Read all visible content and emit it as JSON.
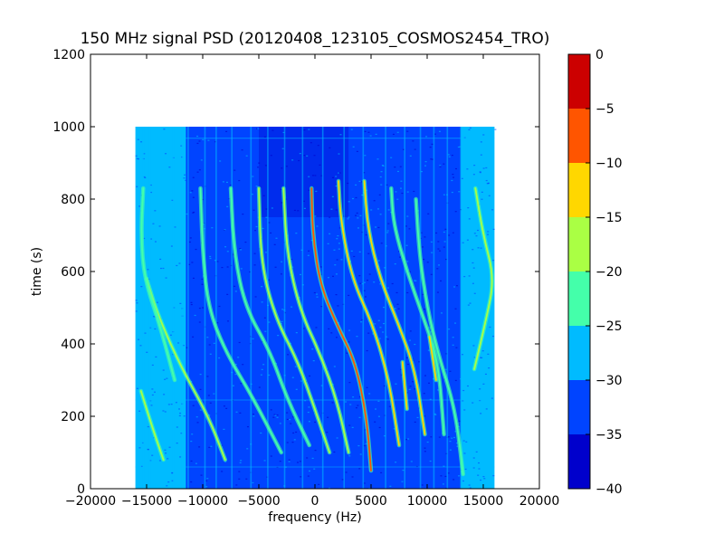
{
  "chart_data": {
    "type": "heatmap",
    "title": "150 MHz signal PSD (20120408_123105_COSMOS2454_TRO)",
    "xlabel": "frequency (Hz)",
    "ylabel": "time (s)",
    "xlim": [
      -20000,
      20000
    ],
    "ylim": [
      0,
      1200
    ],
    "data_extent": {
      "x": [
        -16000,
        16000
      ],
      "y": [
        0,
        1000
      ]
    },
    "x_ticks": [
      -20000,
      -15000,
      -10000,
      -5000,
      0,
      5000,
      10000,
      15000,
      20000
    ],
    "y_ticks": [
      0,
      200,
      400,
      600,
      800,
      1000,
      1200
    ],
    "grid": false,
    "colorbar": {
      "range": [
        -40,
        0
      ],
      "ticks": [
        0,
        -5,
        -10,
        -15,
        -20,
        -25,
        -30,
        -35,
        -40
      ],
      "levels": [
        {
          "from": -40,
          "to": -35,
          "color": "#0000cc"
        },
        {
          "from": -35,
          "to": -30,
          "color": "#0044ff"
        },
        {
          "from": -30,
          "to": -25,
          "color": "#00bbff"
        },
        {
          "from": -25,
          "to": -20,
          "color": "#44ffaa"
        },
        {
          "from": -20,
          "to": -15,
          "color": "#aaff44"
        },
        {
          "from": -15,
          "to": -10,
          "color": "#ffd700"
        },
        {
          "from": -10,
          "to": -5,
          "color": "#ff5500"
        },
        {
          "from": -5,
          "to": 0,
          "color": "#cc0000"
        }
      ]
    },
    "background_level_color": "#00bbff",
    "noise_floor_color": "#0044ff",
    "traces": [
      {
        "name": "",
        "points": [
          [
            5000,
            50
          ],
          [
            4600,
            200
          ],
          [
            3600,
            350
          ],
          [
            2000,
            450
          ],
          [
            500,
            560
          ],
          [
            -200,
            700
          ],
          [
            -300,
            830
          ]
        ],
        "color": "#ff5500"
      },
      {
        "name": "",
        "points": [
          [
            7500,
            120
          ],
          [
            6600,
            300
          ],
          [
            5200,
            450
          ],
          [
            3300,
            580
          ],
          [
            2300,
            740
          ],
          [
            2100,
            850
          ]
        ],
        "color": "#ffd700"
      },
      {
        "name": "",
        "points": [
          [
            9800,
            150
          ],
          [
            8900,
            330
          ],
          [
            7500,
            450
          ],
          [
            5800,
            580
          ],
          [
            4700,
            720
          ],
          [
            4400,
            850
          ]
        ],
        "color": "#ffd700"
      },
      {
        "name": "",
        "points": [
          [
            3000,
            100
          ],
          [
            2000,
            240
          ],
          [
            500,
            370
          ],
          [
            -1300,
            490
          ],
          [
            -2500,
            650
          ],
          [
            -2800,
            830
          ]
        ],
        "color": "#aaff44"
      },
      {
        "name": "",
        "points": [
          [
            1300,
            100
          ],
          [
            0,
            220
          ],
          [
            -1500,
            350
          ],
          [
            -3500,
            470
          ],
          [
            -4800,
            620
          ],
          [
            -5000,
            830
          ]
        ],
        "color": "#aaff44"
      },
      {
        "name": "",
        "points": [
          [
            -500,
            120
          ],
          [
            -2500,
            250
          ],
          [
            -4000,
            380
          ],
          [
            -6200,
            500
          ],
          [
            -7200,
            650
          ],
          [
            -7500,
            830
          ]
        ],
        "color": "#44ffaa"
      },
      {
        "name": "",
        "points": [
          [
            11500,
            150
          ],
          [
            11000,
            350
          ],
          [
            9700,
            470
          ],
          [
            8200,
            600
          ],
          [
            7000,
            730
          ],
          [
            6800,
            830
          ]
        ],
        "color": "#44ffaa"
      },
      {
        "name": "",
        "points": [
          [
            13200,
            40
          ],
          [
            12500,
            220
          ],
          [
            11000,
            370
          ],
          [
            10000,
            500
          ],
          [
            9300,
            650
          ],
          [
            9000,
            800
          ]
        ],
        "color": "#44ffaa"
      },
      {
        "name": "",
        "points": [
          [
            -8000,
            80
          ],
          [
            -9500,
            200
          ],
          [
            -12000,
            340
          ],
          [
            -14000,
            480
          ],
          [
            -15000,
            580
          ]
        ],
        "color": "#aaff44"
      },
      {
        "name": "",
        "points": [
          [
            -13500,
            80
          ],
          [
            -14500,
            170
          ],
          [
            -15500,
            270
          ]
        ],
        "color": "#aaff44"
      },
      {
        "name": "",
        "points": [
          [
            -12500,
            300
          ],
          [
            -13800,
            450
          ],
          [
            -15200,
            580
          ],
          [
            -15500,
            700
          ],
          [
            -15300,
            830
          ]
        ],
        "color": "#44ffaa"
      },
      {
        "name": "",
        "points": [
          [
            14200,
            330
          ],
          [
            15200,
            460
          ],
          [
            16000,
            580
          ],
          [
            15000,
            700
          ],
          [
            14300,
            830
          ]
        ],
        "color": "#aaff44"
      },
      {
        "name": "",
        "points": [
          [
            -3000,
            100
          ],
          [
            -5500,
            250
          ],
          [
            -8000,
            380
          ],
          [
            -9500,
            500
          ],
          [
            -10000,
            650
          ],
          [
            -10200,
            830
          ]
        ],
        "color": "#44ffaa"
      },
      {
        "name": "",
        "points": [
          [
            10800,
            300
          ],
          [
            10200,
            420
          ]
        ],
        "color": "#ffd700"
      },
      {
        "name": "",
        "points": [
          [
            8200,
            220
          ],
          [
            7800,
            350
          ]
        ],
        "color": "#ffd700"
      }
    ],
    "vertical_streaks_x": [
      -15300,
      -14700,
      -12600,
      -11800,
      -11300,
      -9800,
      -8800,
      -7400,
      -5700,
      -4200,
      -2700,
      -1100,
      700,
      2600,
      4300,
      6300,
      8000,
      9400,
      10600,
      11800,
      13000
    ]
  }
}
